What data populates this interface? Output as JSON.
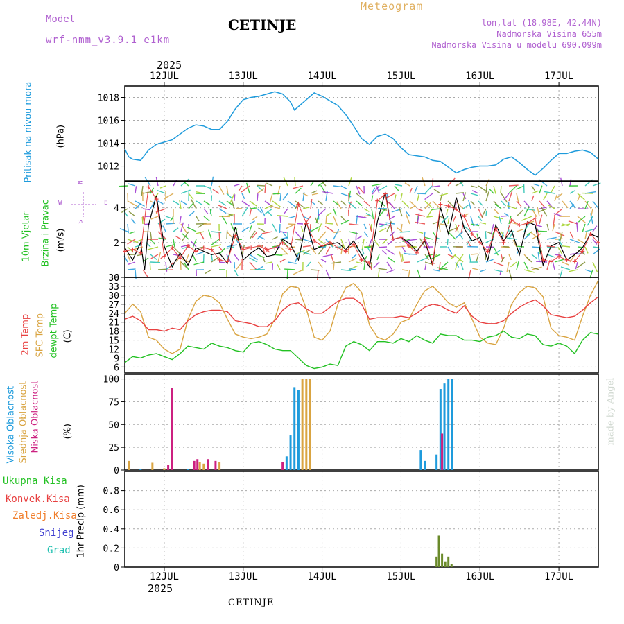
{
  "header": {
    "model_label": "Model",
    "model_name": "wrf-nmm_v3.9.1 e1km",
    "city": "CETINJE",
    "meteogram": "Meteogram",
    "lonlat": "lon,lat (18.98E, 42.44N)",
    "elev": "Nadmorska Visina 655m",
    "elev_model": "Nadmorska Visina u modelu 690.099m",
    "year": "2025",
    "bottom_city": "CETINJE",
    "made_by": "made by Angel"
  },
  "colors": {
    "pressure": "#1e9bdc",
    "wind_speed": "#000000",
    "wind_gust": "#e84040",
    "temp_2m": "#e84040",
    "temp_sfc": "#d9a441",
    "dewpoint": "#22c122",
    "cloud_high": "#1e9bdc",
    "cloud_mid": "#d9a441",
    "cloud_low": "#cc2080",
    "precip_total": "#22c122",
    "precip_conv": "#e84040",
    "precip_frz": "#f07d2a",
    "snow": "#4040d0",
    "graupel": "#20c0b0",
    "label_purple": "#b060d0"
  },
  "x_axis": {
    "days": [
      "12JUL",
      "13JUL",
      "14JUL",
      "15JUL",
      "16JUL",
      "17JUL"
    ],
    "year": "2025"
  },
  "chart_data": [
    {
      "type": "line",
      "title": "Pritisak na nivou mora",
      "ylabel": "(hPa)",
      "ylim": [
        1010.7,
        1019
      ],
      "yticks": [
        1012,
        1014,
        1016,
        1018
      ],
      "grid": true,
      "series": [
        {
          "name": "Pritisak na nivou mora",
          "x": [
            11.5,
            11.55,
            11.6,
            11.7,
            11.8,
            11.9,
            12.0,
            12.1,
            12.2,
            12.3,
            12.4,
            12.5,
            12.6,
            12.7,
            12.8,
            12.9,
            13.0,
            13.1,
            13.2,
            13.3,
            13.4,
            13.5,
            13.6,
            13.65,
            13.7,
            13.8,
            13.9,
            14.0,
            14.1,
            14.2,
            14.3,
            14.4,
            14.5,
            14.6,
            14.7,
            14.8,
            14.9,
            15.0,
            15.1,
            15.2,
            15.3,
            15.4,
            15.5,
            15.6,
            15.7,
            15.8,
            15.9,
            16.0,
            16.1,
            16.2,
            16.3,
            16.4,
            16.5,
            16.6,
            16.7,
            16.8,
            16.9,
            17.0,
            17.1,
            17.2,
            17.3,
            17.4,
            17.5
          ],
          "values": [
            1013.5,
            1012.8,
            1012.6,
            1012.5,
            1013.4,
            1013.9,
            1014.1,
            1014.3,
            1014.8,
            1015.3,
            1015.6,
            1015.5,
            1015.2,
            1015.2,
            1015.9,
            1017.0,
            1017.8,
            1018.0,
            1018.1,
            1018.3,
            1018.5,
            1018.3,
            1017.6,
            1016.9,
            1017.2,
            1017.8,
            1018.4,
            1018.1,
            1017.7,
            1017.3,
            1016.5,
            1015.5,
            1014.4,
            1013.9,
            1014.6,
            1014.8,
            1014.4,
            1013.6,
            1013.0,
            1012.9,
            1012.8,
            1012.5,
            1012.4,
            1011.9,
            1011.4,
            1011.7,
            1011.9,
            1012.0,
            1012.0,
            1012.1,
            1012.6,
            1012.8,
            1012.3,
            1011.7,
            1011.2,
            1011.8,
            1012.5,
            1013.1,
            1013.1,
            1013.3,
            1013.4,
            1013.2,
            1012.6
          ]
        }
      ]
    },
    {
      "type": "line",
      "title": "10m Vjetar Brzina i Pravac",
      "ylabel": "(m/s)",
      "ylim": [
        0,
        5.5
      ],
      "yticks": [
        0,
        2,
        4
      ],
      "grid": true,
      "direction_legend": [
        "N",
        "E",
        "S",
        "W"
      ],
      "series": [
        {
          "name": "Brzina",
          "x": [
            11.5,
            11.6,
            11.7,
            11.75,
            11.8,
            11.9,
            12.0,
            12.1,
            12.2,
            12.3,
            12.4,
            12.5,
            12.6,
            12.7,
            12.8,
            12.9,
            13.0,
            13.1,
            13.2,
            13.3,
            13.4,
            13.5,
            13.6,
            13.7,
            13.8,
            13.9,
            14.0,
            14.1,
            14.2,
            14.3,
            14.4,
            14.5,
            14.6,
            14.7,
            14.8,
            14.9,
            15.0,
            15.1,
            15.2,
            15.3,
            15.4,
            15.5,
            15.6,
            15.7,
            15.8,
            15.9,
            16.0,
            16.1,
            16.2,
            16.3,
            16.4,
            16.5,
            16.6,
            16.7,
            16.8,
            16.9,
            17.0,
            17.1,
            17.2,
            17.3,
            17.4,
            17.5
          ],
          "values": [
            1.7,
            1.0,
            2.0,
            0.4,
            3.0,
            4.7,
            1.8,
            0.6,
            1.4,
            0.7,
            1.7,
            1.5,
            1.3,
            1.4,
            0.8,
            2.9,
            1.0,
            1.4,
            1.7,
            1.2,
            1.3,
            2.2,
            1.9,
            1.0,
            3.2,
            1.6,
            1.8,
            1.9,
            2.0,
            1.6,
            2.1,
            1.3,
            0.6,
            3.2,
            4.9,
            2.2,
            2.3,
            2.0,
            1.5,
            2.1,
            0.7,
            4.0,
            2.5,
            4.6,
            2.8,
            2.1,
            2.3,
            1.0,
            3.0,
            2.1,
            2.7,
            1.3,
            3.2,
            3.0,
            0.7,
            1.8,
            2.0,
            1.0,
            1.3,
            1.7,
            2.5,
            2.3
          ]
        },
        {
          "name": "Udar",
          "x": [
            11.5,
            11.6,
            11.7,
            11.8,
            11.9,
            12.0,
            12.1,
            12.2,
            12.3,
            12.4,
            12.5,
            12.6,
            12.7,
            12.8,
            12.9,
            13.0,
            13.1,
            13.2,
            13.3,
            13.4,
            13.5,
            13.6,
            13.7,
            13.8,
            13.9,
            14.0,
            14.1,
            14.2,
            14.3,
            14.4,
            14.5,
            14.6,
            14.7,
            14.8,
            14.9,
            15.0,
            15.1,
            15.2,
            15.3,
            15.4,
            15.5,
            15.6,
            15.7,
            15.8,
            15.9,
            16.0,
            16.1,
            16.2,
            16.3,
            16.4,
            16.5,
            16.6,
            16.7,
            16.8,
            16.9,
            17.0,
            17.1,
            17.2,
            17.3,
            17.4,
            17.5
          ],
          "values": [
            1.5,
            1.6,
            1.4,
            5.2,
            4.5,
            1.2,
            1.7,
            1.1,
            1.8,
            1.5,
            1.7,
            1.6,
            1.0,
            0.9,
            2.4,
            1.6,
            1.7,
            1.8,
            1.6,
            1.7,
            2.0,
            1.6,
            4.2,
            3.1,
            2.1,
            1.8,
            2.0,
            1.7,
            1.5,
            1.9,
            1.0,
            0.8,
            4.4,
            4.8,
            2.2,
            2.3,
            1.8,
            1.4,
            2.2,
            0.8,
            4.2,
            4.1,
            3.9,
            3.5,
            2.5,
            2.0,
            1.5,
            2.8,
            2.0,
            3.3,
            3.0,
            3.1,
            3.4,
            1.0,
            0.9,
            1.2,
            1.0,
            0.9,
            1.5,
            2.5,
            2.0
          ]
        }
      ]
    },
    {
      "type": "line",
      "title": "2m Temp / SFC Temp / dewpt Temp",
      "ylabel": "(C)",
      "ylim": [
        4,
        36
      ],
      "yticks": [
        6,
        9,
        12,
        15,
        18,
        21,
        24,
        27,
        30,
        33,
        36
      ],
      "grid": true,
      "series": [
        {
          "name": "2m Temp",
          "x": [
            11.5,
            11.6,
            11.7,
            11.8,
            11.9,
            12.0,
            12.1,
            12.2,
            12.3,
            12.4,
            12.5,
            12.6,
            12.7,
            12.8,
            12.9,
            13.0,
            13.1,
            13.2,
            13.3,
            13.4,
            13.5,
            13.6,
            13.7,
            13.8,
            13.9,
            14.0,
            14.1,
            14.2,
            14.3,
            14.4,
            14.5,
            14.6,
            14.7,
            14.8,
            14.9,
            15.0,
            15.1,
            15.2,
            15.3,
            15.4,
            15.5,
            15.6,
            15.7,
            15.8,
            15.9,
            16.0,
            16.1,
            16.2,
            16.3,
            16.4,
            16.5,
            16.6,
            16.7,
            16.8,
            16.9,
            17.0,
            17.1,
            17.2,
            17.3,
            17.4,
            17.5
          ],
          "values": [
            22.0,
            23.0,
            21.5,
            18.5,
            18.5,
            18.0,
            19.0,
            18.5,
            21.5,
            23.5,
            24.5,
            25.0,
            25.0,
            24.5,
            21.5,
            21.0,
            20.5,
            19.5,
            19.5,
            21.5,
            25.0,
            27.0,
            27.5,
            25.5,
            24.0,
            24.0,
            26.0,
            28.0,
            29.0,
            29.0,
            27.0,
            22.0,
            22.5,
            22.5,
            22.5,
            23.0,
            22.5,
            24.0,
            26.0,
            27.0,
            26.5,
            25.0,
            24.0,
            26.5,
            23.0,
            21.0,
            20.5,
            20.5,
            21.5,
            24.0,
            26.0,
            27.5,
            28.5,
            26.5,
            23.5,
            23.0,
            22.5,
            23.0,
            25.0,
            27.5,
            29.5
          ]
        },
        {
          "name": "SFC Temp",
          "x": [
            11.5,
            11.6,
            11.7,
            11.8,
            11.9,
            12.0,
            12.1,
            12.2,
            12.3,
            12.4,
            12.5,
            12.6,
            12.7,
            12.8,
            12.9,
            13.0,
            13.1,
            13.2,
            13.3,
            13.4,
            13.5,
            13.6,
            13.7,
            13.8,
            13.9,
            14.0,
            14.1,
            14.2,
            14.3,
            14.4,
            14.5,
            14.6,
            14.7,
            14.8,
            14.9,
            15.0,
            15.1,
            15.2,
            15.3,
            15.4,
            15.5,
            15.6,
            15.7,
            15.8,
            15.9,
            16.0,
            16.1,
            16.2,
            16.3,
            16.4,
            16.5,
            16.6,
            16.7,
            16.8,
            16.9,
            17.0,
            17.1,
            17.2,
            17.3,
            17.4,
            17.5
          ],
          "values": [
            24.0,
            27.0,
            24.5,
            16.0,
            15.0,
            12.0,
            10.5,
            12.0,
            22.0,
            28.0,
            30.0,
            29.5,
            27.5,
            22.0,
            17.0,
            16.0,
            15.5,
            16.0,
            17.0,
            22.0,
            30.5,
            33.0,
            32.5,
            25.5,
            16.0,
            15.0,
            18.0,
            27.0,
            32.5,
            34.0,
            31.0,
            20.0,
            16.0,
            15.0,
            17.0,
            21.0,
            22.0,
            27.0,
            31.5,
            33.0,
            30.5,
            27.5,
            26.0,
            27.5,
            22.0,
            16.0,
            14.0,
            13.5,
            19.0,
            27.0,
            31.0,
            33.0,
            32.5,
            29.5,
            19.0,
            16.5,
            16.0,
            15.0,
            23.0,
            30.0,
            35.0
          ]
        },
        {
          "name": "dewpt Temp",
          "x": [
            11.5,
            11.6,
            11.7,
            11.8,
            11.9,
            12.0,
            12.1,
            12.2,
            12.3,
            12.4,
            12.5,
            12.6,
            12.7,
            12.8,
            12.9,
            13.0,
            13.1,
            13.2,
            13.3,
            13.4,
            13.5,
            13.6,
            13.7,
            13.8,
            13.9,
            14.0,
            14.1,
            14.2,
            14.3,
            14.4,
            14.5,
            14.6,
            14.7,
            14.8,
            14.9,
            15.0,
            15.1,
            15.2,
            15.3,
            15.4,
            15.5,
            15.6,
            15.7,
            15.8,
            15.9,
            16.0,
            16.1,
            16.2,
            16.3,
            16.4,
            16.5,
            16.6,
            16.7,
            16.8,
            16.9,
            17.0,
            17.1,
            17.2,
            17.3,
            17.4,
            17.5
          ],
          "values": [
            7.5,
            9.5,
            9.0,
            10.0,
            10.5,
            9.5,
            8.5,
            10.5,
            13.0,
            12.5,
            12.0,
            14.0,
            13.0,
            12.5,
            11.5,
            11.0,
            14.0,
            14.5,
            13.5,
            12.0,
            11.5,
            11.5,
            9.0,
            6.5,
            5.5,
            6.0,
            7.0,
            6.5,
            13.0,
            14.5,
            13.5,
            11.5,
            14.5,
            14.5,
            14.0,
            15.5,
            14.5,
            16.5,
            15.0,
            14.0,
            17.0,
            16.5,
            16.5,
            15.0,
            15.0,
            14.5,
            16.0,
            16.5,
            18.0,
            16.0,
            15.5,
            17.0,
            16.5,
            13.5,
            13.0,
            14.0,
            13.0,
            10.5,
            15.0,
            17.5,
            17.0
          ]
        }
      ]
    },
    {
      "type": "bar",
      "title": "Visoka Oblacnost / Srednja Oblacnost / Niska Oblacnost",
      "ylabel": "(%)",
      "ylim": [
        0,
        105
      ],
      "yticks": [
        0,
        25,
        50,
        75,
        100
      ],
      "grid": true,
      "series": [
        {
          "name": "Visoka Oblacnost",
          "x": [
            11.7,
            12.3,
            13.55,
            13.6,
            13.65,
            13.7,
            15.25,
            15.3,
            15.45,
            15.5,
            15.55,
            15.6,
            15.65
          ],
          "values": [
            1,
            1,
            15,
            38,
            91,
            88,
            22,
            10,
            17,
            89,
            95,
            100,
            100
          ]
        },
        {
          "name": "Srednja Oblacnost",
          "x": [
            11.55,
            11.85,
            12.0,
            12.45,
            12.5,
            12.7,
            13.75,
            13.8,
            13.85
          ],
          "values": [
            10,
            8,
            2,
            9,
            7,
            9,
            100,
            100,
            100
          ]
        },
        {
          "name": "Niska Oblacnost",
          "x": [
            12.05,
            12.1,
            12.38,
            12.42,
            12.55,
            12.65,
            13.5,
            15.52
          ],
          "values": [
            6,
            90,
            10,
            12,
            12,
            10,
            9,
            40
          ]
        }
      ]
    },
    {
      "type": "bar",
      "title": "1hr Precip",
      "ylabel": "1hr Precip (mm)",
      "ylim": [
        0,
        1.0
      ],
      "yticks": [
        0,
        0.2,
        0.4,
        0.6,
        0.8
      ],
      "grid": true,
      "legend": [
        "Ukupna Kisa",
        "Konvek.Kisa",
        "Zaledj.Kisa",
        "Snijeg",
        "Grad"
      ],
      "series": [
        {
          "name": "Ukupna Kisa",
          "x": [
            15.45,
            15.48,
            15.52,
            15.56,
            15.6,
            15.64
          ],
          "values": [
            0.11,
            0.33,
            0.14,
            0.06,
            0.11,
            0.03
          ]
        }
      ]
    }
  ],
  "axis_labels": {
    "pressure_title": "Pritisak na nivou mora",
    "pressure_unit": "(hPa)",
    "wind_title_1": "10m Vjetar",
    "wind_title_2": "Brzina i Pravac",
    "wind_unit": "(m/s)",
    "temp_2m": "2m Temp",
    "temp_sfc": "SFC Temp",
    "temp_dew": "dewpt Temp",
    "temp_unit": "(C)",
    "cloud_high": "Visoka Oblacnost",
    "cloud_mid": "Srednja Oblacnost",
    "cloud_low": "Niska Oblacnost",
    "cloud_unit": "(%)",
    "precip_unit": "1hr Precip (mm)",
    "precip_total": "Ukupna Kisa",
    "precip_conv": "Konvek.Kisa",
    "precip_frz": "Zaledj.Kisa",
    "precip_snow": "Snijeg",
    "precip_graupel": "Grad",
    "compass": "N",
    "compass_e": "E",
    "compass_w": "W",
    "compass_s": "S"
  }
}
